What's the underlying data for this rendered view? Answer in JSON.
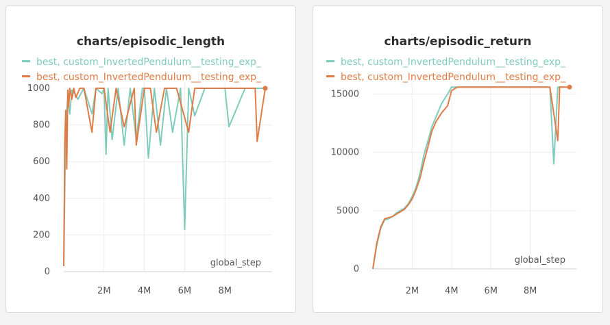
{
  "colors": {
    "teal": "#7fcbbb",
    "orange": "#e07b45"
  },
  "chart_data": [
    {
      "type": "line",
      "title": "charts/episodic_length",
      "xlabel": "global_step",
      "ylabel": "",
      "xlim": [
        0,
        10000000
      ],
      "ylim": [
        0,
        1000
      ],
      "yticks": [
        0,
        200,
        400,
        600,
        800,
        1000
      ],
      "xticks": [
        2000000,
        4000000,
        6000000,
        8000000
      ],
      "xtick_labels": [
        "2M",
        "4M",
        "6M",
        "8M"
      ],
      "ytick_labels": [
        "0",
        "200",
        "400",
        "600",
        "800",
        "1000"
      ],
      "grid": true,
      "legend_position": "top",
      "series": [
        {
          "name": "best, custom_InvertedPendulum__testing_exp_",
          "color": "teal",
          "x": [
            0,
            100000,
            200000,
            300000,
            400000,
            500000,
            700000,
            1000000,
            1400000,
            1600000,
            1900000,
            2000000,
            2100000,
            2200000,
            2400000,
            2700000,
            3000000,
            3300000,
            3600000,
            3900000,
            4000000,
            4200000,
            4500000,
            4800000,
            5100000,
            5400000,
            5800000,
            6000000,
            6200000,
            6500000,
            7000000,
            7500000,
            8000000,
            8200000,
            9000000,
            9600000,
            10000000
          ],
          "y": [
            30,
            800,
            950,
            860,
            990,
            980,
            940,
            1000,
            860,
            1000,
            970,
            1000,
            640,
            1000,
            720,
            1000,
            690,
            1000,
            720,
            1000,
            1000,
            620,
            1000,
            690,
            1000,
            760,
            1000,
            230,
            1000,
            850,
            1000,
            1000,
            1000,
            790,
            1000,
            1000,
            1000
          ]
        },
        {
          "name": "best, custom_InvertedPendulum__testing_exp_",
          "color": "orange",
          "x": [
            0,
            50000,
            100000,
            150000,
            200000,
            250000,
            300000,
            400000,
            500000,
            600000,
            800000,
            1000000,
            1400000,
            1600000,
            2000000,
            2300000,
            2600000,
            3000000,
            3500000,
            3600000,
            4000000,
            4300000,
            4600000,
            5000000,
            5600000,
            6200000,
            6500000,
            7000000,
            8000000,
            9000000,
            9500000,
            9600000,
            10000000
          ],
          "y": [
            30,
            700,
            880,
            560,
            990,
            900,
            1000,
            940,
            1000,
            950,
            1000,
            1000,
            760,
            1000,
            1000,
            760,
            1000,
            790,
            1000,
            690,
            1000,
            1000,
            760,
            1000,
            1000,
            760,
            1000,
            1000,
            1000,
            1000,
            1000,
            710,
            1000
          ]
        }
      ]
    },
    {
      "type": "line",
      "title": "charts/episodic_return",
      "xlabel": "global_step",
      "ylabel": "",
      "xlim": [
        0,
        10000000
      ],
      "ylim": [
        0,
        15500
      ],
      "yticks": [
        0,
        5000,
        10000,
        15000
      ],
      "xticks": [
        2000000,
        4000000,
        6000000,
        8000000
      ],
      "xtick_labels": [
        "2M",
        "4M",
        "6M",
        "8M"
      ],
      "ytick_labels": [
        "0",
        "5000",
        "10000",
        "15000"
      ],
      "grid": true,
      "legend_position": "top",
      "series": [
        {
          "name": "best, custom_InvertedPendulum__testing_exp_",
          "color": "teal",
          "x": [
            0,
            200000,
            400000,
            600000,
            800000,
            1000000,
            1200000,
            1400000,
            1600000,
            1800000,
            2000000,
            2200000,
            2400000,
            2600000,
            2800000,
            3000000,
            3200000,
            3500000,
            3800000,
            4000000,
            4300000,
            4700000,
            5000000,
            5300000,
            5700000,
            6000000,
            6500000,
            7000000,
            7500000,
            8000000,
            8500000,
            9000000,
            9200000,
            9400000,
            10000000
          ],
          "y": [
            0,
            2000,
            3500,
            4200,
            4300,
            4500,
            4800,
            5000,
            5200,
            5600,
            6200,
            7000,
            8200,
            9800,
            11000,
            12200,
            13000,
            14200,
            15000,
            15600,
            15600,
            15600,
            15600,
            15600,
            15600,
            15600,
            15600,
            15600,
            15600,
            15600,
            15600,
            15600,
            9000,
            15600,
            15600
          ]
        },
        {
          "name": "best, custom_InvertedPendulum__testing_exp_",
          "color": "orange",
          "x": [
            0,
            200000,
            400000,
            600000,
            800000,
            1000000,
            1200000,
            1400000,
            1600000,
            1800000,
            2000000,
            2200000,
            2400000,
            2600000,
            2800000,
            3000000,
            3200000,
            3500000,
            3800000,
            4000000,
            4300000,
            4700000,
            5000000,
            5500000,
            6000000,
            6500000,
            7000000,
            7500000,
            8000000,
            8500000,
            9000000,
            9400000,
            9500000,
            10000000
          ],
          "y": [
            0,
            2200,
            3600,
            4300,
            4400,
            4500,
            4700,
            4900,
            5100,
            5500,
            6000,
            6800,
            7800,
            9200,
            10500,
            11800,
            12600,
            13400,
            14000,
            15300,
            15600,
            15600,
            15600,
            15600,
            15600,
            15600,
            15600,
            15600,
            15600,
            15600,
            15600,
            11000,
            15600,
            15600
          ]
        }
      ]
    }
  ]
}
